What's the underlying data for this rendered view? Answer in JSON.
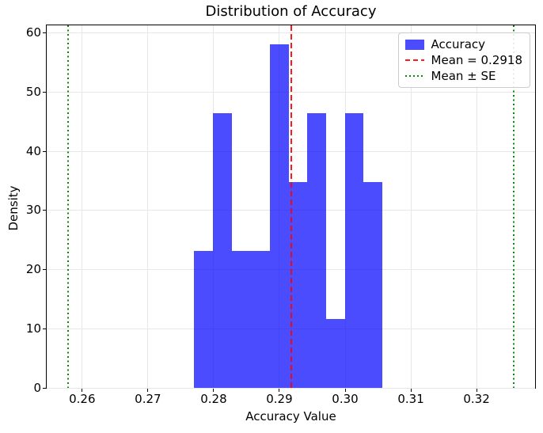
{
  "chart_data": {
    "type": "bar",
    "subtype": "density-histogram",
    "title": "Distribution of Accuracy",
    "xlabel": "Accuracy Value",
    "ylabel": "Density",
    "series_label": "Accuracy",
    "xlim": [
      0.2546,
      0.3289
    ],
    "ylim": [
      0,
      61.3
    ],
    "grid": true,
    "bin_edges": [
      0.277,
      0.2799,
      0.2828,
      0.2856,
      0.2885,
      0.2914,
      0.2942,
      0.2971,
      0.3,
      0.3028,
      0.3057
    ],
    "densities": [
      23.2,
      46.5,
      23.2,
      23.2,
      58.1,
      34.8,
      46.5,
      11.6,
      46.5,
      34.8
    ],
    "counts": [
      2,
      4,
      2,
      2,
      5,
      3,
      4,
      1,
      4,
      3
    ],
    "mean_line": {
      "x": 0.2918,
      "color": "#ff0000",
      "style": "dashed",
      "label": "Mean = 0.2918"
    },
    "se_lines": {
      "xs": [
        0.2578,
        0.3256
      ],
      "color": "#008000",
      "style": "dotted",
      "label": "Mean ± SE"
    },
    "xticks": {
      "values": [
        0.26,
        0.27,
        0.28,
        0.29,
        0.3,
        0.31,
        0.32
      ],
      "labels": [
        "0.26",
        "0.27",
        "0.28",
        "0.29",
        "0.30",
        "0.31",
        "0.32"
      ]
    },
    "yticks": {
      "values": [
        0,
        10,
        20,
        30,
        40,
        50,
        60
      ],
      "labels": [
        "0",
        "10",
        "20",
        "30",
        "40",
        "50",
        "60"
      ]
    },
    "colors": {
      "bar": "#0000ff",
      "bar_alpha": 0.7,
      "mean": "#ff0000",
      "se": "#008000",
      "grid": "#e7e7e7",
      "spine": "#000000"
    },
    "legend": {
      "position": "upper right",
      "entries": [
        {
          "type": "patch",
          "color": "#0000ff",
          "label": "Accuracy"
        },
        {
          "type": "dashed-line",
          "color": "#ff0000",
          "label": "Mean = 0.2918"
        },
        {
          "type": "dotted-line",
          "color": "#008000",
          "label": "Mean ± SE"
        }
      ]
    }
  }
}
